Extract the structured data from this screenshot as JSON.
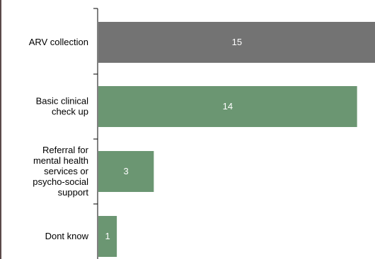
{
  "chart_data": {
    "type": "bar",
    "orientation": "horizontal",
    "categories": [
      "ARV collection",
      "Basic clinical check up",
      "Referral for mental health services or psycho-social support",
      "Dont know"
    ],
    "category_label_lines": [
      [
        "ARV collection"
      ],
      [
        "Basic clinical",
        "check up"
      ],
      [
        "Referral for",
        "mental health",
        "services or",
        "psycho-social",
        "support"
      ],
      [
        "Dont know"
      ]
    ],
    "values": [
      15,
      14,
      3,
      1
    ],
    "xlim": [
      0,
      15.2
    ],
    "bar_colors": [
      "#737373",
      "#6b9672",
      "#6b9672",
      "#6b9672"
    ],
    "data_label_color": "#ffffff",
    "axis_color": "#000000",
    "grid": false,
    "legend": "none",
    "title": "",
    "xlabel": "",
    "ylabel": ""
  }
}
